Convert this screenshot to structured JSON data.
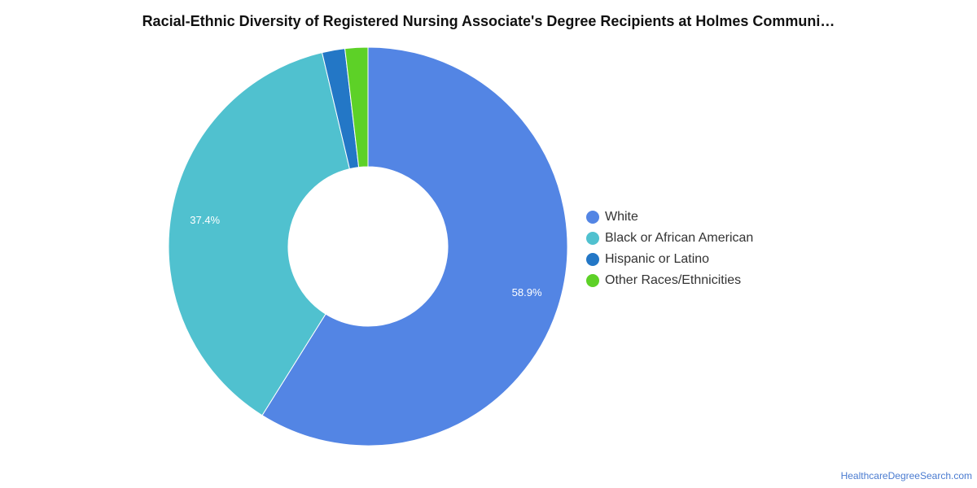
{
  "chart_data": {
    "type": "pie",
    "title": "Racial-Ethnic Diversity of Registered Nursing Associate's Degree Recipients at Holmes Communi…",
    "categories": [
      "White",
      "Black or African American",
      "Hispanic or Latino",
      "Other Races/Ethnicities"
    ],
    "values": [
      58.9,
      37.4,
      1.85,
      1.85
    ],
    "value_labels": [
      "58.9%",
      "37.4%",
      "",
      ""
    ],
    "colors": [
      "#5385E4",
      "#50C1CF",
      "#2377C6",
      "#5DD127"
    ],
    "donut": true,
    "legend_position": "right"
  },
  "footer": {
    "source": "HealthcareDegreeSearch.com"
  }
}
